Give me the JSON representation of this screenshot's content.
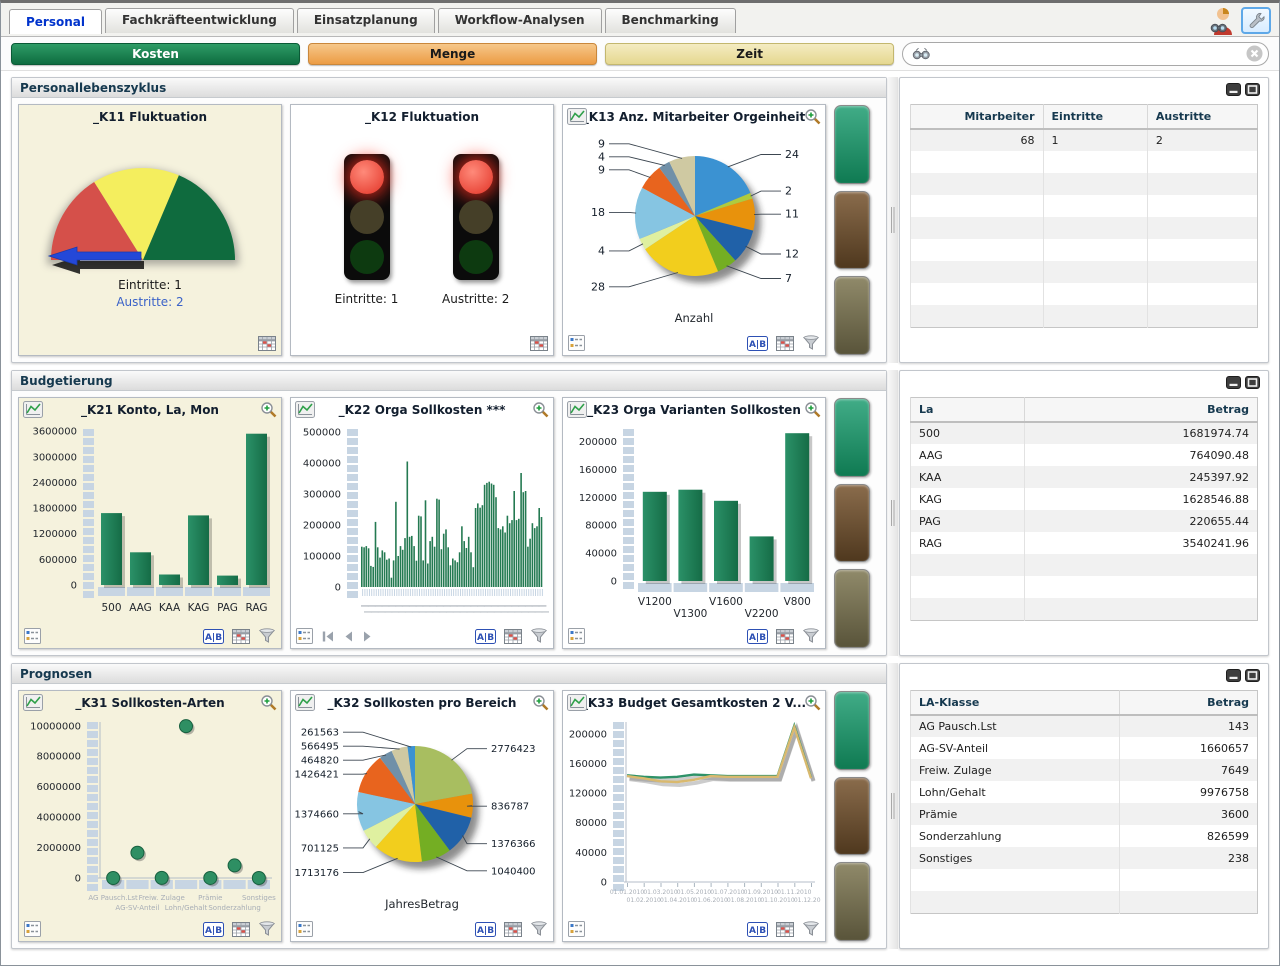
{
  "window": {
    "tabs": [
      {
        "label": "Personal",
        "active": true
      },
      {
        "label": "Fachkräfteentwicklung",
        "active": false
      },
      {
        "label": "Einsatzplanung",
        "active": false
      },
      {
        "label": "Workflow-Analysen",
        "active": false
      },
      {
        "label": "Benchmarking",
        "active": false
      }
    ]
  },
  "icons": {
    "ab_label": "A|B"
  },
  "toolbar": {
    "buttons": [
      {
        "label": "Kosten",
        "bg_top": "#2E9C66",
        "bg_bottom": "#0E6C40",
        "border": "#0A5A36",
        "text_color": "#FFFFFF"
      },
      {
        "label": "Menge",
        "bg_top": "#F6C78A",
        "bg_bottom": "#EC9C44",
        "border": "#C9873B",
        "text_color": "#1A1A1A"
      },
      {
        "label": "Zeit",
        "bg_top": "#F4ECC2",
        "bg_bottom": "#E5D78F",
        "border": "#C3B76E",
        "text_color": "#1A1A1A"
      }
    ],
    "search": {
      "value": ""
    }
  },
  "sections": [
    {
      "title": "Personallebenszyklus"
    },
    {
      "title": "Budgetierung"
    },
    {
      "title": "Prognosen"
    }
  ],
  "panels": {
    "k11": {
      "title": "_K11 Fluktuation",
      "labels": {
        "eintritte": "Eintritte: 1",
        "austritte": "Austritte: 2"
      }
    },
    "k12": {
      "title": "_K12 Fluktuation",
      "labels": {
        "left": "Eintritte: 1",
        "right": "Austritte: 2"
      }
    },
    "k13": {
      "title": "_K13 Anz. Mitarbeiter Orgeinheit"
    },
    "k21": {
      "title": "_K21 Konto, La, Mon"
    },
    "k22": {
      "title": "_K22 Orga Sollkosten ***"
    },
    "k23": {
      "title": "_K23 Orga Varianten Sollkosten"
    },
    "k31": {
      "title": "_K31 Sollkosten-Arten"
    },
    "k32": {
      "title": "_K32 Sollkosten pro Bereich"
    },
    "k33": {
      "title": "_K33 Budget Gesamtkosten 2 V..."
    }
  },
  "tables": {
    "t1": {
      "columns": [
        "Mitarbeiter",
        "Eintritte",
        "Austritte"
      ],
      "align": [
        "right",
        "left",
        "left"
      ],
      "rows": [
        [
          "68",
          "1",
          "2"
        ]
      ],
      "empty_rows": 8
    },
    "t2": {
      "columns": [
        "La",
        "Betrag"
      ],
      "align": [
        "left",
        "right"
      ],
      "rows": [
        [
          "500",
          "1681974.74"
        ],
        [
          "AAG",
          "764090.48"
        ],
        [
          "KAA",
          "245397.92"
        ],
        [
          "KAG",
          "1628546.88"
        ],
        [
          "PAG",
          "220655.44"
        ],
        [
          "RAG",
          "3540241.96"
        ]
      ],
      "empty_rows": 3
    },
    "t3": {
      "columns": [
        "LA-Klasse",
        "Betrag"
      ],
      "align": [
        "left",
        "right"
      ],
      "rows": [
        [
          "AG Pausch.Lst",
          "143"
        ],
        [
          "AG-SV-Anteil",
          "1660657"
        ],
        [
          "Freiw. Zulage",
          "7649"
        ],
        [
          "Lohn/Gehalt",
          "9976758"
        ],
        [
          "Prämie",
          "3600"
        ],
        [
          "Sonderzahlung",
          "826599"
        ],
        [
          "Sonstiges",
          "238"
        ]
      ],
      "empty_rows": 2
    }
  },
  "swatches": [
    {
      "name": "green",
      "from": "#41AC87",
      "to": "#0F7A52"
    },
    {
      "name": "brown",
      "from": "#8A6C4C",
      "to": "#4F381E"
    },
    {
      "name": "olive",
      "from": "#908A6A",
      "to": "#59543A"
    }
  ],
  "chart_data": [
    {
      "id": "k11",
      "type": "gauge",
      "title": "_K11 Fluktuation",
      "segments": [
        {
          "from_deg": 180,
          "to_deg": 122,
          "color": "#D5504A"
        },
        {
          "from_deg": 122,
          "to_deg": 67,
          "color": "#F4EE5E"
        },
        {
          "from_deg": 67,
          "to_deg": 0,
          "color": "#0F6B3E"
        }
      ],
      "needle_position": "far-left",
      "needle_color": "#2448D8",
      "annotations": [
        "Eintritte: 1",
        "Austritte: 2"
      ]
    },
    {
      "id": "k12",
      "type": "status-lights",
      "title": "_K12 Fluktuation",
      "lights": [
        {
          "label": "Eintritte: 1",
          "state": "red"
        },
        {
          "label": "Austritte: 2",
          "state": "red"
        }
      ]
    },
    {
      "id": "k13",
      "type": "pie",
      "title": "_K13 Anz. Mitarbeiter Orgeinheit",
      "xlabel": "Anzahl",
      "values": [
        24,
        2,
        11,
        12,
        7,
        28,
        4,
        18,
        9,
        4,
        9
      ],
      "colors": [
        "#3B92D2",
        "#AFCB3E",
        "#E8920C",
        "#2061A8",
        "#74AE23",
        "#F2CE1D",
        "#DFF0A0",
        "#86C5E2",
        "#E8641E",
        "#7090A8",
        "#CFC9A2"
      ]
    },
    {
      "id": "k21",
      "type": "bar",
      "title": "_K21 Konto, La, Mon",
      "categories": [
        "500",
        "AAG",
        "KAA",
        "KAG",
        "PAG",
        "RAG"
      ],
      "values": [
        1681974.74,
        764090.48,
        245397.92,
        1628546.88,
        220655.44,
        3540241.96
      ],
      "ylim": [
        0,
        3600000
      ],
      "ystep": 600000,
      "bar_color": "#1E8255"
    },
    {
      "id": "k22",
      "type": "bar",
      "title": "_K22 Orga Sollkosten ***",
      "x_labels_legible": false,
      "values": [
        130000,
        128000,
        132000,
        125000,
        68000,
        65000,
        210000,
        128000,
        95000,
        118000,
        112000,
        88000,
        92000,
        30000,
        86000,
        275000,
        100000,
        132000,
        120000,
        158000,
        405000,
        162000,
        165000,
        132000,
        85000,
        230000,
        228000,
        86000,
        280000,
        76000,
        148000,
        162000,
        130000,
        285000,
        282000,
        122000,
        172000,
        186000,
        128000,
        70000,
        92000,
        86000,
        80000,
        112000,
        196000,
        148000,
        126000,
        162000,
        112000,
        64000,
        255000,
        270000,
        256000,
        264000,
        330000,
        336000,
        340000,
        334000,
        330000,
        290000,
        190000,
        186000,
        196000,
        176000,
        230000,
        206000,
        216000,
        310000,
        216000,
        220000,
        368000,
        306000,
        310000,
        130000,
        156000,
        206000,
        190000,
        196000,
        255000,
        226000
      ],
      "ylim": [
        0,
        500000
      ],
      "ystep": 100000,
      "bar_color": "#247A52"
    },
    {
      "id": "k23",
      "type": "bar",
      "title": "_K23 Orga Varianten Sollkosten",
      "categories": [
        "V1200",
        "V1300",
        "V1600",
        "V2200",
        "V800"
      ],
      "values": [
        128000,
        131000,
        115000,
        64000,
        212000
      ],
      "ylim": [
        0,
        200000
      ],
      "ystep": 40000,
      "bar_color": "#1E8255"
    },
    {
      "id": "k31",
      "type": "scatter",
      "title": "_K31 Sollkosten-Arten",
      "categories": [
        "AG Pausch.Lst",
        "AG-SV-Anteil",
        "Freiw. Zulage",
        "Lohn/Gehalt",
        "Prämie",
        "Sonderzahlung",
        "Sonstiges"
      ],
      "values": [
        143,
        1660657,
        7649,
        9976758,
        3600,
        826599,
        238
      ],
      "ylim": [
        0,
        10000000
      ],
      "ystep": 2000000,
      "point_color": "#2E8F63"
    },
    {
      "id": "k32",
      "type": "pie",
      "title": "_K32 Sollkosten pro Bereich",
      "xlabel": "JahresBetrag",
      "values": [
        2776423,
        836787,
        1376366,
        1040400,
        1713176,
        701125,
        1374660,
        1426421,
        464820,
        566495,
        261563
      ],
      "colors": [
        "#A8BE60",
        "#E8920C",
        "#2061A8",
        "#74AE23",
        "#F2CE1D",
        "#DFF0A0",
        "#86C5E2",
        "#E8641E",
        "#7090A8",
        "#CFC9A2",
        "#3B92D2"
      ]
    },
    {
      "id": "k33",
      "type": "line",
      "title": "_K33 Budget Gesamtkosten 2 V...",
      "categories": [
        "01.01.2010",
        "01.02.2010",
        "01.03.2010",
        "01.04.2010",
        "01.05.2010",
        "01.06.2010",
        "01.07.2010",
        "01.08.2010",
        "01.09.2010",
        "01.10.2010",
        "01.11.2010",
        "01.12.2010"
      ],
      "series": [
        {
          "name": "green",
          "color": "#2E9268",
          "values": [
            144000,
            142000,
            141000,
            142000,
            145000,
            144000,
            143000,
            143000,
            143000,
            143000,
            211000,
            141000
          ]
        },
        {
          "name": "tan",
          "color": "#D9B96E",
          "values": [
            143000,
            140000,
            136000,
            135000,
            138000,
            143000,
            142000,
            142000,
            142000,
            142000,
            209000,
            140000
          ]
        }
      ],
      "ylim": [
        0,
        200000
      ],
      "ystep": 40000
    }
  ]
}
